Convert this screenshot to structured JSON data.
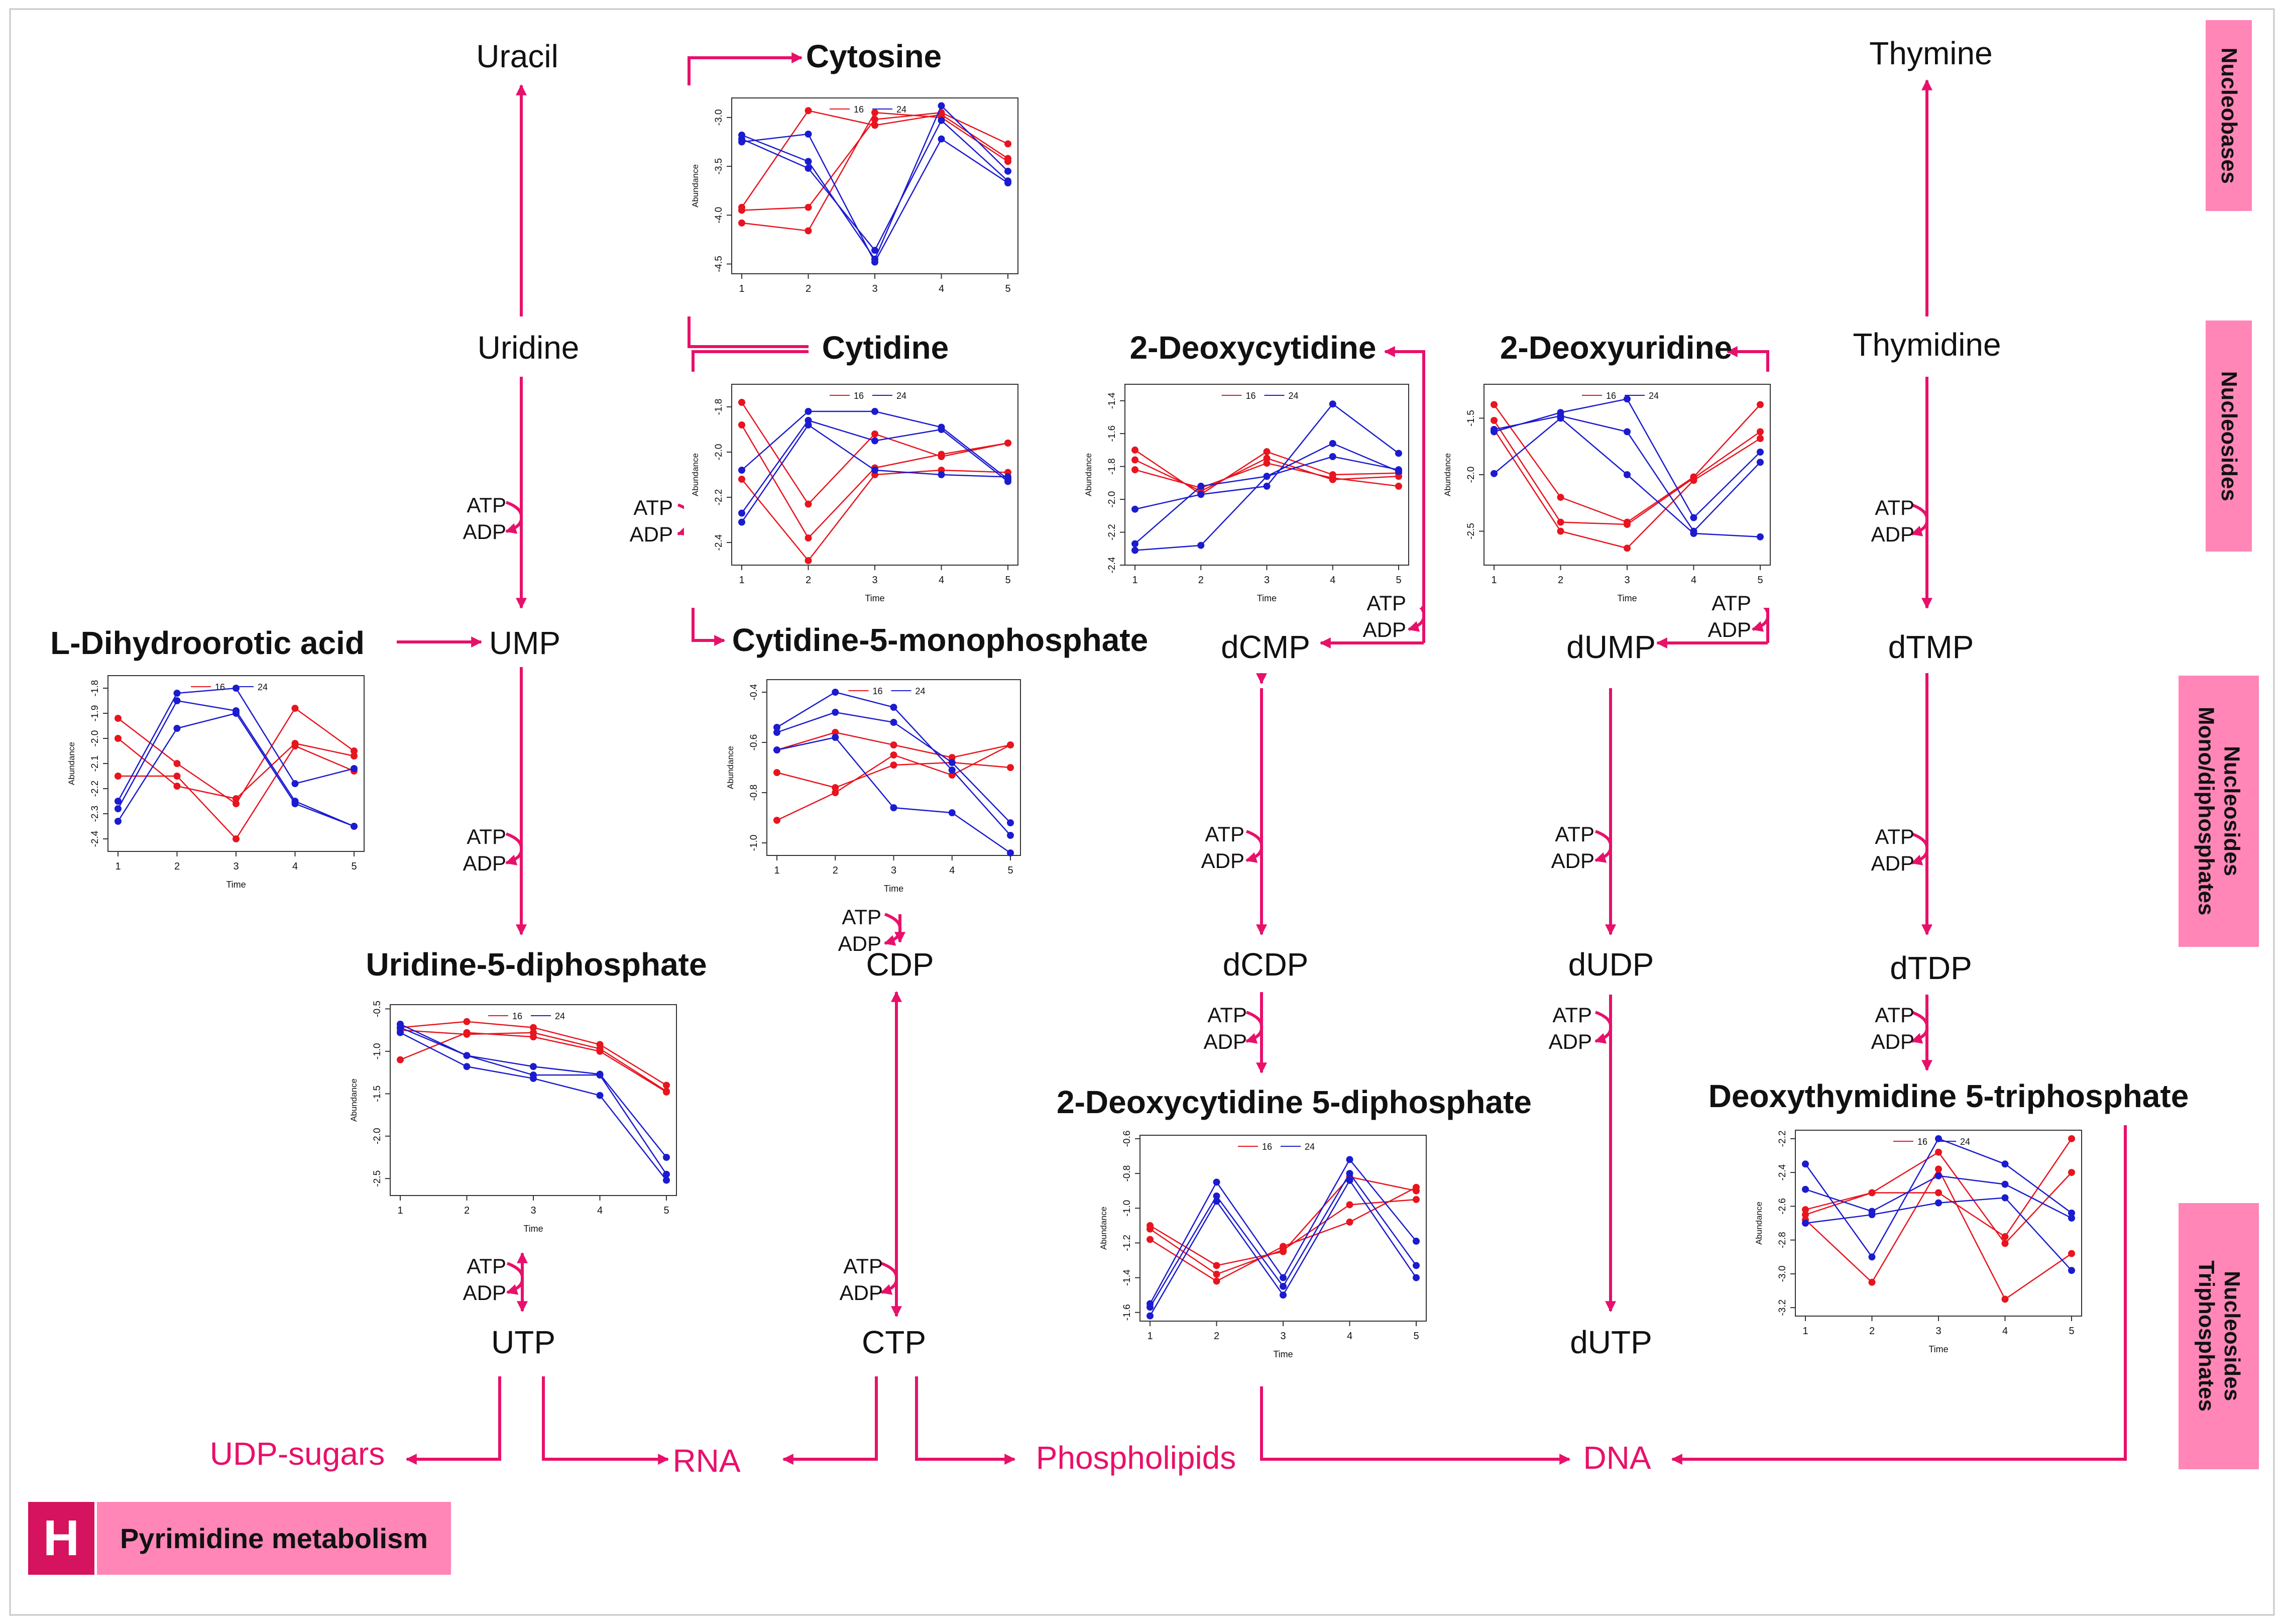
{
  "title": "Pyrimidine metabolism",
  "panel_letter": "H",
  "colors": {
    "accent": "#e8106a",
    "side_band": "#ff86b7",
    "series_16": "#e8141e",
    "series_24": "#1b1bcf"
  },
  "categories": {
    "nucleobases": "Nucleobases",
    "nucleosides": "Nucleosides",
    "monodiphosphates_1": "Nucleosides",
    "monodiphosphates_2": "Mono/diphosphates",
    "triphosphates_1": "Nucleosides",
    "triphosphates_2": "Triphosphates"
  },
  "nodes": {
    "uracil": "Uracil",
    "cytosine": "Cytosine",
    "thymine": "Thymine",
    "uridine": "Uridine",
    "cytidine": "Cytidine",
    "deoxycytidine": "2-Deoxycytidine",
    "deoxyuridine": "2-Deoxyuridine",
    "thymidine": "Thymidine",
    "dihydroorotic": "L-Dihydroorotic acid",
    "ump": "UMP",
    "cmp": "Cytidine-5-monophosphate",
    "dcmp": "dCMP",
    "dump": "dUMP",
    "dtmp": "dTMP",
    "udp": "Uridine-5-diphosphate",
    "cdp": "CDP",
    "dcdp": "dCDP",
    "dudp": "dUDP",
    "dtdp": "dTDP",
    "dcdp_full": "2-Deoxycytidine 5-diphosphate",
    "dttp_full": "Deoxythymidine 5-triphosphate",
    "utp": "UTP",
    "ctp": "CTP",
    "dutp": "dUTP",
    "udp_sugars": "UDP-sugars",
    "rna": "RNA",
    "phospholipids": "Phospholipids",
    "dna": "DNA"
  },
  "cofactor": {
    "atp": "ATP",
    "adp": "ADP"
  },
  "chart_data": [
    {
      "id": "cytosine",
      "type": "line",
      "title": "",
      "xlabel": "",
      "ylabel": "Abundance",
      "x": [
        1,
        2,
        3,
        4,
        5
      ],
      "ylim": [
        -4.6,
        -2.8
      ],
      "yticks": [
        -3.0,
        -3.5,
        -4.0,
        -4.5
      ],
      "legend": [
        "16",
        "24"
      ],
      "series": [
        {
          "name": "16",
          "values": [
            -3.95,
            -3.92,
            -3.02,
            -2.95,
            -3.27
          ]
        },
        {
          "name": "16",
          "values": [
            -4.08,
            -4.16,
            -2.95,
            -3.0,
            -3.45
          ]
        },
        {
          "name": "16",
          "values": [
            -3.92,
            -2.93,
            -3.08,
            -2.97,
            -3.42
          ]
        },
        {
          "name": "24",
          "values": [
            -3.18,
            -3.45,
            -4.45,
            -2.88,
            -3.55
          ]
        },
        {
          "name": "24",
          "values": [
            -3.22,
            -3.52,
            -4.36,
            -3.03,
            -3.65
          ]
        },
        {
          "name": "24",
          "values": [
            -3.25,
            -3.17,
            -4.48,
            -3.22,
            -3.67
          ]
        }
      ]
    },
    {
      "id": "cytidine",
      "type": "line",
      "title": "",
      "xlabel": "Time",
      "ylabel": "Abundance",
      "x": [
        1,
        2,
        3,
        4,
        5
      ],
      "ylim": [
        -2.5,
        -1.7
      ],
      "yticks": [
        -1.8,
        -2.0,
        -2.2,
        -2.4
      ],
      "legend": [
        "16",
        "24"
      ],
      "series": [
        {
          "name": "16",
          "values": [
            -1.78,
            -2.23,
            -1.92,
            -2.02,
            -1.96
          ]
        },
        {
          "name": "16",
          "values": [
            -1.88,
            -2.38,
            -2.07,
            -2.01,
            -1.96
          ]
        },
        {
          "name": "16",
          "values": [
            -2.12,
            -2.48,
            -2.1,
            -2.08,
            -2.09
          ]
        },
        {
          "name": "24",
          "values": [
            -2.08,
            -1.82,
            -1.82,
            -1.89,
            -2.12
          ]
        },
        {
          "name": "24",
          "values": [
            -2.27,
            -1.86,
            -1.95,
            -1.9,
            -2.13
          ]
        },
        {
          "name": "24",
          "values": [
            -2.31,
            -1.88,
            -2.08,
            -2.1,
            -2.11
          ]
        }
      ]
    },
    {
      "id": "deoxycytidine",
      "type": "line",
      "title": "",
      "xlabel": "Time",
      "ylabel": "Abundance",
      "x": [
        1,
        2,
        3,
        4,
        5
      ],
      "ylim": [
        -2.4,
        -1.3
      ],
      "yticks": [
        -1.4,
        -1.6,
        -1.8,
        -2.0,
        -2.2,
        -2.4
      ],
      "legend": [
        "16",
        "24"
      ],
      "series": [
        {
          "name": "16",
          "values": [
            -1.7,
            -1.97,
            -1.71,
            -1.85,
            -1.84
          ]
        },
        {
          "name": "16",
          "values": [
            -1.76,
            -1.95,
            -1.75,
            -1.88,
            -1.86
          ]
        },
        {
          "name": "16",
          "values": [
            -1.82,
            -1.93,
            -1.78,
            -1.87,
            -1.92
          ]
        },
        {
          "name": "24",
          "values": [
            -2.06,
            -1.97,
            -1.92,
            -1.42,
            -1.72
          ]
        },
        {
          "name": "24",
          "values": [
            -2.27,
            -1.92,
            -1.86,
            -1.66,
            -1.83
          ]
        },
        {
          "name": "24",
          "values": [
            -2.31,
            -2.28,
            -1.86,
            -1.74,
            -1.82
          ]
        }
      ]
    },
    {
      "id": "deoxyuridine",
      "type": "line",
      "title": "",
      "xlabel": "Time",
      "ylabel": "Abundance",
      "x": [
        1,
        2,
        3,
        4,
        5
      ],
      "ylim": [
        -2.8,
        -1.2
      ],
      "yticks": [
        -1.5,
        -2.0,
        -2.5
      ],
      "legend": [
        "16",
        "24"
      ],
      "series": [
        {
          "name": "16",
          "values": [
            -1.38,
            -2.2,
            -2.42,
            -2.02,
            -1.38
          ]
        },
        {
          "name": "16",
          "values": [
            -1.52,
            -2.42,
            -2.44,
            -2.03,
            -1.62
          ]
        },
        {
          "name": "16",
          "values": [
            -1.6,
            -2.5,
            -2.65,
            -2.05,
            -1.68
          ]
        },
        {
          "name": "24",
          "values": [
            -1.62,
            -1.45,
            -1.33,
            -2.38,
            -1.8
          ]
        },
        {
          "name": "24",
          "values": [
            -1.6,
            -1.48,
            -1.62,
            -2.5,
            -1.89
          ]
        },
        {
          "name": "24",
          "values": [
            -1.99,
            -1.5,
            -2.0,
            -2.52,
            -2.55
          ]
        }
      ]
    },
    {
      "id": "dihydroorotic",
      "type": "line",
      "title": "",
      "xlabel": "Time",
      "ylabel": "Abundance",
      "x": [
        1,
        2,
        3,
        4,
        5
      ],
      "ylim": [
        -2.45,
        -1.75
      ],
      "yticks": [
        -1.8,
        -1.9,
        -2.0,
        -2.1,
        -2.2,
        -2.3,
        -2.4
      ],
      "legend": [
        "16",
        "24"
      ],
      "series": [
        {
          "name": "16",
          "values": [
            -1.92,
            -2.1,
            -2.26,
            -1.88,
            -2.05
          ]
        },
        {
          "name": "16",
          "values": [
            -2.0,
            -2.19,
            -2.24,
            -2.02,
            -2.07
          ]
        },
        {
          "name": "16",
          "values": [
            -2.15,
            -2.15,
            -2.4,
            -2.03,
            -2.13
          ]
        },
        {
          "name": "24",
          "values": [
            -2.25,
            -1.82,
            -1.8,
            -2.18,
            -2.12
          ]
        },
        {
          "name": "24",
          "values": [
            -2.28,
            -1.85,
            -1.89,
            -2.25,
            -2.35
          ]
        },
        {
          "name": "24",
          "values": [
            -2.33,
            -1.96,
            -1.9,
            -2.26,
            -2.35
          ]
        }
      ]
    },
    {
      "id": "cmp",
      "type": "line",
      "title": "",
      "xlabel": "Time",
      "ylabel": "Abundance",
      "x": [
        1,
        2,
        3,
        4,
        5
      ],
      "ylim": [
        -1.05,
        -0.35
      ],
      "yticks": [
        -0.4,
        -0.6,
        -0.8,
        -1.0
      ],
      "legend": [
        "16",
        "24"
      ],
      "series": [
        {
          "name": "16",
          "values": [
            -0.63,
            -0.56,
            -0.61,
            -0.66,
            -0.61
          ]
        },
        {
          "name": "16",
          "values": [
            -0.72,
            -0.78,
            -0.69,
            -0.68,
            -0.7
          ]
        },
        {
          "name": "16",
          "values": [
            -0.91,
            -0.8,
            -0.65,
            -0.73,
            -0.61
          ]
        },
        {
          "name": "24",
          "values": [
            -0.54,
            -0.4,
            -0.46,
            -0.71,
            -0.97
          ]
        },
        {
          "name": "24",
          "values": [
            -0.56,
            -0.48,
            -0.52,
            -0.68,
            -0.92
          ]
        },
        {
          "name": "24",
          "values": [
            -0.63,
            -0.58,
            -0.86,
            -0.88,
            -1.04
          ]
        }
      ]
    },
    {
      "id": "udp",
      "type": "line",
      "title": "",
      "xlabel": "Time",
      "ylabel": "Abundance",
      "x": [
        1,
        2,
        3,
        4,
        5
      ],
      "ylim": [
        -2.7,
        -0.45
      ],
      "yticks": [
        -0.5,
        -1.0,
        -1.5,
        -2.0,
        -2.5
      ],
      "legend": [
        "16",
        "24"
      ],
      "series": [
        {
          "name": "16",
          "values": [
            -0.72,
            -0.65,
            -0.72,
            -0.92,
            -1.4
          ]
        },
        {
          "name": "16",
          "values": [
            -0.75,
            -0.8,
            -0.78,
            -0.97,
            -1.47
          ]
        },
        {
          "name": "16",
          "values": [
            -1.1,
            -0.78,
            -0.83,
            -1.0,
            -1.48
          ]
        },
        {
          "name": "24",
          "values": [
            -0.68,
            -1.05,
            -1.18,
            -1.27,
            -2.25
          ]
        },
        {
          "name": "24",
          "values": [
            -0.72,
            -1.05,
            -1.28,
            -1.28,
            -2.45
          ]
        },
        {
          "name": "24",
          "values": [
            -0.78,
            -1.18,
            -1.32,
            -1.52,
            -2.52
          ]
        }
      ]
    },
    {
      "id": "dcdp",
      "type": "line",
      "title": "",
      "xlabel": "Time",
      "ylabel": "Abundance",
      "x": [
        1,
        2,
        3,
        4,
        5
      ],
      "ylim": [
        -1.65,
        -0.58
      ],
      "yticks": [
        -0.6,
        -0.8,
        -1.0,
        -1.2,
        -1.4,
        -1.6
      ],
      "legend": [
        "16",
        "24"
      ],
      "series": [
        {
          "name": "16",
          "values": [
            -1.1,
            -1.33,
            -1.25,
            -0.82,
            -0.9
          ]
        },
        {
          "name": "16",
          "values": [
            -1.12,
            -1.38,
            -1.24,
            -0.98,
            -0.95
          ]
        },
        {
          "name": "16",
          "values": [
            -1.18,
            -1.42,
            -1.22,
            -1.08,
            -0.88
          ]
        },
        {
          "name": "24",
          "values": [
            -1.55,
            -0.85,
            -1.4,
            -0.72,
            -1.19
          ]
        },
        {
          "name": "24",
          "values": [
            -1.57,
            -0.93,
            -1.45,
            -0.8,
            -1.33
          ]
        },
        {
          "name": "24",
          "values": [
            -1.62,
            -0.96,
            -1.5,
            -0.84,
            -1.4
          ]
        }
      ]
    },
    {
      "id": "dttp",
      "type": "line",
      "title": "",
      "xlabel": "Time",
      "ylabel": "Abundance",
      "x": [
        1,
        2,
        3,
        4,
        5
      ],
      "ylim": [
        -3.25,
        -2.15
      ],
      "yticks": [
        -2.2,
        -2.4,
        -2.6,
        -2.8,
        -3.0,
        -3.2
      ],
      "legend": [
        "16",
        "24"
      ],
      "series": [
        {
          "name": "16",
          "values": [
            -2.62,
            -2.52,
            -2.52,
            -2.78,
            -2.2
          ]
        },
        {
          "name": "16",
          "values": [
            -2.65,
            -2.52,
            -2.28,
            -2.82,
            -2.4
          ]
        },
        {
          "name": "16",
          "values": [
            -2.68,
            -3.05,
            -2.38,
            -3.15,
            -2.88
          ]
        },
        {
          "name": "24",
          "values": [
            -2.35,
            -2.9,
            -2.2,
            -2.35,
            -2.64
          ]
        },
        {
          "name": "24",
          "values": [
            -2.5,
            -2.63,
            -2.42,
            -2.47,
            -2.67
          ]
        },
        {
          "name": "24",
          "values": [
            -2.7,
            -2.65,
            -2.58,
            -2.55,
            -2.98
          ]
        }
      ]
    }
  ]
}
